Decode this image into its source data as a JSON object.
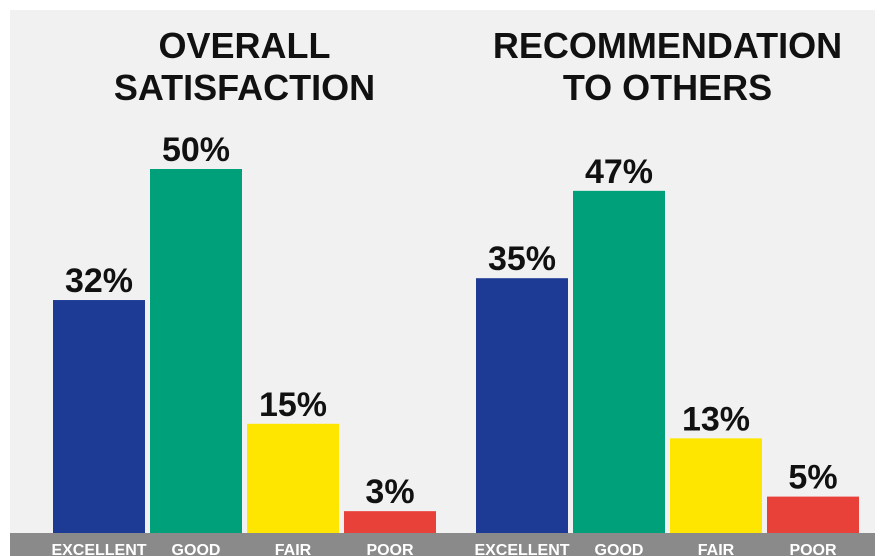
{
  "chart_data": [
    {
      "type": "bar",
      "title": [
        "OVERALL",
        "SATISFACTION"
      ],
      "categories": [
        "EXCELLENT",
        "GOOD",
        "FAIR",
        "POOR"
      ],
      "values": [
        32,
        50,
        15,
        3
      ],
      "value_labels": [
        "32%",
        "50%",
        "15%",
        "3%"
      ],
      "colors": [
        "#1d3a94",
        "#00a07a",
        "#ffe600",
        "#e8413a"
      ]
    },
    {
      "type": "bar",
      "title": [
        "RECOMMENDATION",
        "TO OTHERS"
      ],
      "categories": [
        "EXCELLENT",
        "GOOD",
        "FAIR",
        "POOR"
      ],
      "values": [
        35,
        47,
        13,
        5
      ],
      "value_labels": [
        "35%",
        "47%",
        "13%",
        "5%"
      ],
      "colors": [
        "#1d3a94",
        "#00a07a",
        "#ffe600",
        "#e8413a"
      ]
    }
  ]
}
